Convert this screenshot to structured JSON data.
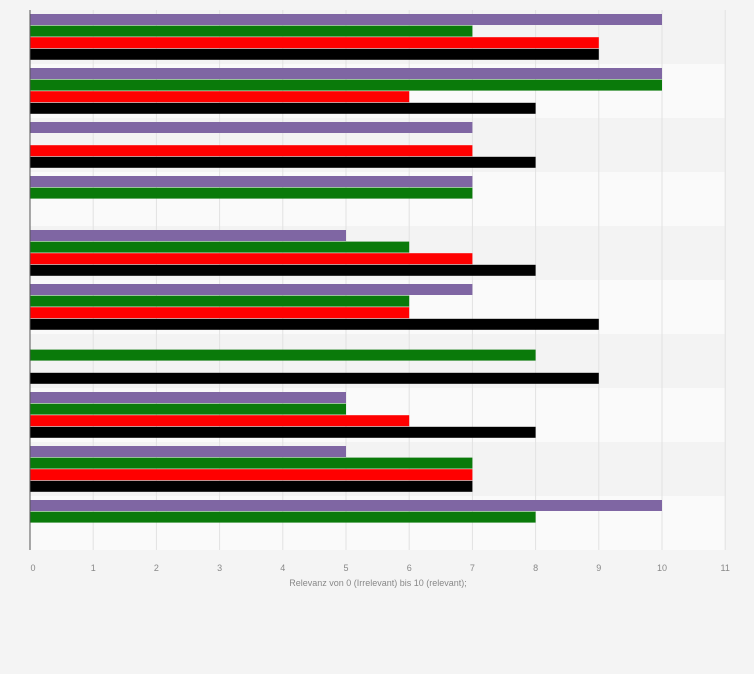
{
  "chart_data": {
    "type": "bar",
    "orientation": "horizontal",
    "title": "",
    "xlabel": "Relevanz von 0 (Irrelevant) bis 10 (relevant);",
    "ylabel": "",
    "xlim": [
      0,
      11
    ],
    "xticks": [
      "0",
      "1",
      "2",
      "3",
      "4",
      "5",
      "6",
      "7",
      "8",
      "9",
      "10",
      "11"
    ],
    "grid": true,
    "legend": "none",
    "categories": [
      "",
      "",
      "",
      "",
      "",
      "",
      "",
      "",
      "",
      ""
    ],
    "series": [
      {
        "color": "#7f66a3",
        "values": [
          10,
          10,
          7,
          7,
          5,
          7,
          null,
          5,
          5,
          10
        ]
      },
      {
        "color": "#0a7a0a",
        "values": [
          7,
          10,
          null,
          7,
          6,
          6,
          8,
          5,
          7,
          8
        ]
      },
      {
        "color": "#ff0000",
        "values": [
          9,
          6,
          7,
          null,
          7,
          6,
          null,
          6,
          7,
          null
        ]
      },
      {
        "color": "#000000",
        "values": [
          9,
          8,
          8,
          null,
          8,
          9,
          9,
          8,
          7,
          null
        ]
      }
    ]
  }
}
